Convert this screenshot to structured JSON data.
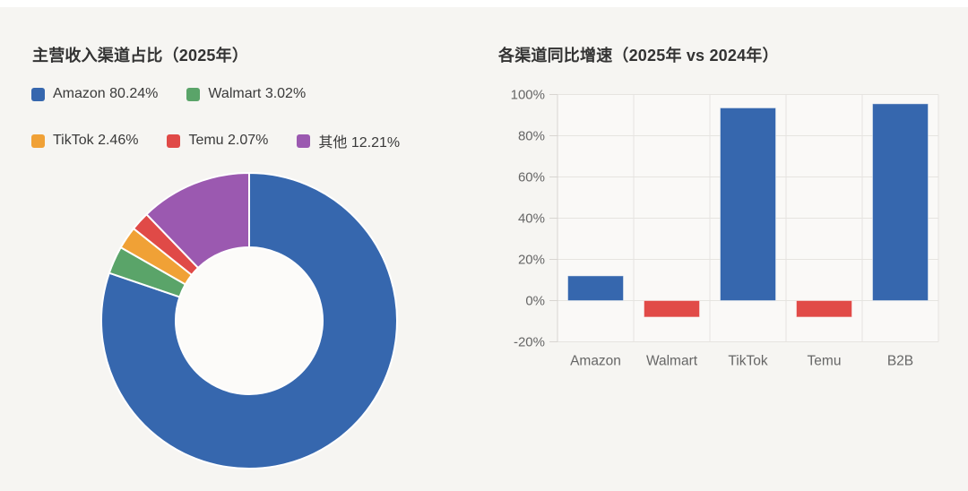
{
  "page": {
    "background": "#f6f5f2",
    "top_strip_color": "#ffffff"
  },
  "style": {
    "grid_color": "#e6e4e0",
    "axis_line_color": "#d8d5d1",
    "plot_bg": "#faf9f7",
    "axis_text_color": "#666666",
    "title_color": "#333333",
    "legend_text_color": "#3a3a3a",
    "donut_hole_color": "#fcfbf9",
    "slice_separator_color": "#ffffff"
  },
  "chart_data": [
    {
      "type": "pie",
      "donut": true,
      "title": "主营收入渠道占比（2025年）",
      "start_angle_deg": -90,
      "direction": "clockwise",
      "legend_position": "top",
      "legend_rows": [
        [
          0,
          1
        ],
        [
          2,
          3,
          4
        ]
      ],
      "segments": [
        {
          "label": "Amazon",
          "value": 80.24,
          "display": "Amazon 80.24%",
          "color": "#3667ae"
        },
        {
          "label": "Walmart",
          "value": 3.02,
          "display": "Walmart 3.02%",
          "color": "#5aa469"
        },
        {
          "label": "TikTok",
          "value": 2.46,
          "display": "TikTok 2.46%",
          "color": "#f0a136"
        },
        {
          "label": "Temu",
          "value": 2.07,
          "display": "Temu 2.07%",
          "color": "#e04a47"
        },
        {
          "label": "其他",
          "value": 12.21,
          "display": "其他 12.21%",
          "color": "#9b59b0"
        }
      ]
    },
    {
      "type": "bar",
      "title": "各渠道同比增速（2025年 vs 2024年）",
      "categories": [
        "Amazon",
        "Walmart",
        "TikTok",
        "Temu",
        "B2B"
      ],
      "values": [
        12,
        -8,
        93.5,
        -8,
        95.5
      ],
      "unit": "%",
      "ylim": [
        -20,
        100
      ],
      "ytick_values": [
        -20,
        0,
        20,
        40,
        60,
        80,
        100
      ],
      "ytick_labels": [
        "-20%",
        "0%",
        "20%",
        "40%",
        "60%",
        "80%",
        "100%"
      ],
      "color_positive": "#3667ae",
      "color_negative": "#e14b48",
      "grid": true,
      "xlabel": "",
      "ylabel": ""
    }
  ]
}
